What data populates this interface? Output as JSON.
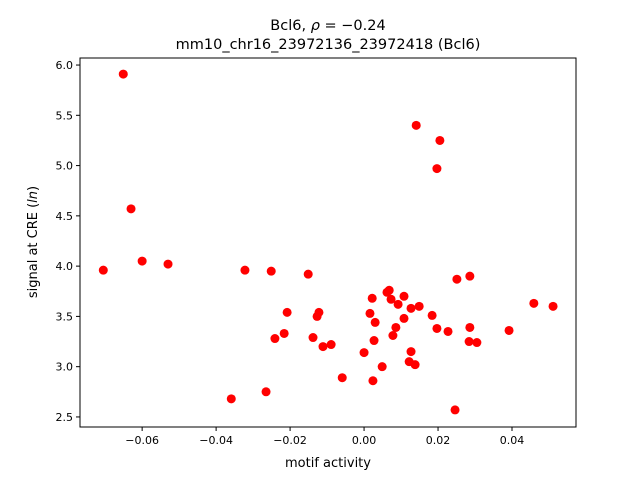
{
  "chart_data": {
    "type": "scatter",
    "title_line1_prefix": "Bcl6, ",
    "title_rho_symbol": "ρ",
    "title_line1_suffix": " = −0.24",
    "title_line2": "mm10_chr16_23972136_23972418 (Bcl6)",
    "xlabel": "motif activity",
    "ylabel_prefix": "signal at CRE (",
    "ylabel_italic": "ln",
    "ylabel_suffix": ")",
    "xlim": [
      -0.0768,
      0.0573
    ],
    "ylim": [
      2.4,
      6.07
    ],
    "xticks": [
      -0.06,
      -0.04,
      -0.02,
      0.0,
      0.02,
      0.04
    ],
    "xtick_labels": [
      "−0.06",
      "−0.04",
      "−0.02",
      "0.00",
      "0.02",
      "0.04"
    ],
    "yticks": [
      2.5,
      3.0,
      3.5,
      4.0,
      4.5,
      5.0,
      5.5,
      6.0
    ],
    "ytick_labels": [
      "2.5",
      "3.0",
      "3.5",
      "4.0",
      "4.5",
      "5.0",
      "5.5",
      "6.0"
    ],
    "grid": false,
    "marker_color": "#ff0000",
    "points": [
      [
        -0.0651,
        5.91
      ],
      [
        -0.063,
        4.57
      ],
      [
        -0.0705,
        3.96
      ],
      [
        -0.06,
        4.05
      ],
      [
        -0.053,
        4.02
      ],
      [
        -0.0322,
        3.96
      ],
      [
        -0.0251,
        3.95
      ],
      [
        -0.0359,
        2.68
      ],
      [
        -0.0265,
        2.75
      ],
      [
        -0.0151,
        3.92
      ],
      [
        -0.0208,
        3.54
      ],
      [
        -0.0216,
        3.33
      ],
      [
        -0.0241,
        3.28
      ],
      [
        -0.0122,
        3.54
      ],
      [
        -0.0127,
        3.5
      ],
      [
        -0.0138,
        3.29
      ],
      [
        -0.0111,
        3.2
      ],
      [
        -0.0089,
        3.22
      ],
      [
        -0.0059,
        2.89
      ],
      [
        0.0022,
        3.68
      ],
      [
        0.0016,
        3.53
      ],
      [
        0.003,
        3.44
      ],
      [
        0.0027,
        3.26
      ],
      [
        0.0,
        3.14
      ],
      [
        0.0049,
        3.0
      ],
      [
        0.0024,
        2.86
      ],
      [
        0.0062,
        3.74
      ],
      [
        0.0068,
        3.76
      ],
      [
        0.0073,
        3.67
      ],
      [
        0.0092,
        3.62
      ],
      [
        0.0108,
        3.7
      ],
      [
        0.0127,
        3.58
      ],
      [
        0.0149,
        3.6
      ],
      [
        0.0108,
        3.48
      ],
      [
        0.0086,
        3.39
      ],
      [
        0.0078,
        3.31
      ],
      [
        0.0127,
        3.15
      ],
      [
        0.0122,
        3.05
      ],
      [
        0.0138,
        3.02
      ],
      [
        0.0184,
        3.51
      ],
      [
        0.0197,
        3.38
      ],
      [
        0.0227,
        3.35
      ],
      [
        0.0251,
        3.87
      ],
      [
        0.0286,
        3.9
      ],
      [
        0.0286,
        3.39
      ],
      [
        0.0284,
        3.25
      ],
      [
        0.0305,
        3.24
      ],
      [
        0.0246,
        2.57
      ],
      [
        0.0392,
        3.36
      ],
      [
        0.0459,
        3.63
      ],
      [
        0.0511,
        3.6
      ],
      [
        0.0141,
        5.4
      ],
      [
        0.0205,
        5.25
      ],
      [
        0.0197,
        4.97
      ]
    ]
  }
}
